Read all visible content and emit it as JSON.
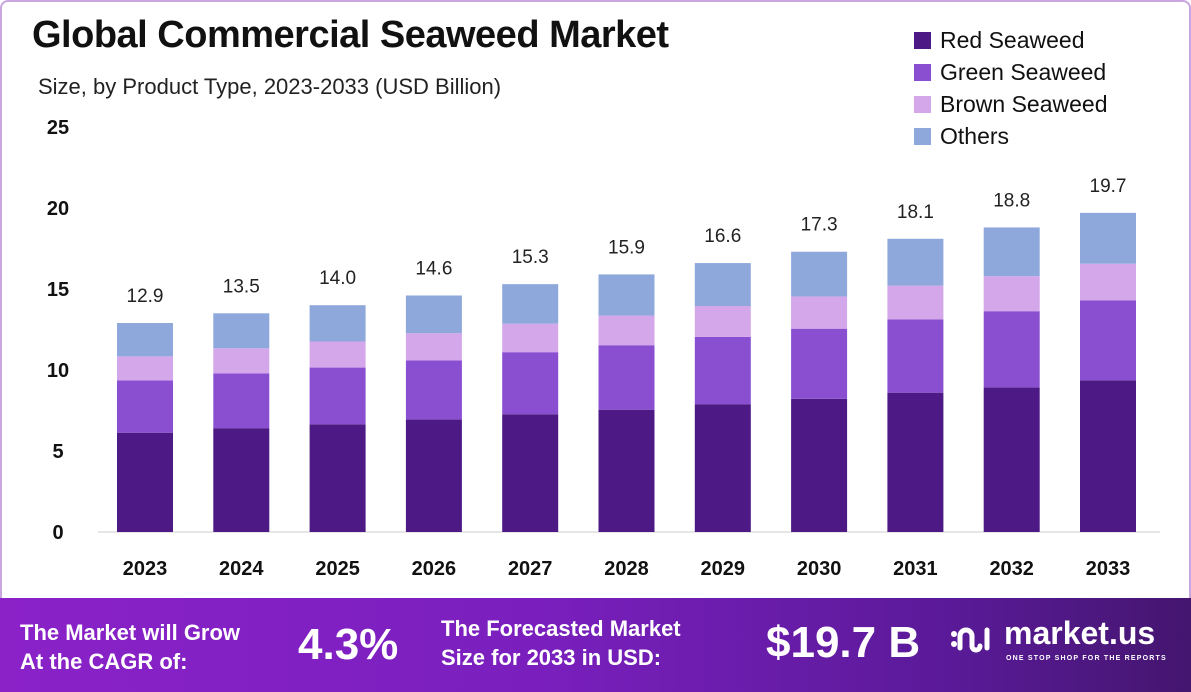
{
  "chart_data": {
    "type": "bar",
    "stacked": true,
    "title": "Global Commercial Seaweed Market",
    "subtitle": "Size, by Product Type, 2023-2033 (USD Billion)",
    "xlabel": "",
    "ylabel": "",
    "ylim": [
      0,
      25
    ],
    "yticks": [
      "0",
      "5",
      "10",
      "15",
      "20",
      "25"
    ],
    "categories": [
      "2023",
      "2024",
      "2025",
      "2026",
      "2027",
      "2028",
      "2029",
      "2030",
      "2031",
      "2032",
      "2033"
    ],
    "totals": [
      "12.9",
      "13.5",
      "14.0",
      "14.6",
      "15.3",
      "15.9",
      "16.6",
      "17.3",
      "18.1",
      "18.8",
      "19.7"
    ],
    "series": [
      {
        "name": "Red Seaweed",
        "color": "#4d1a85",
        "values": [
          6.13,
          6.41,
          6.65,
          6.94,
          7.27,
          7.55,
          7.89,
          8.22,
          8.6,
          8.93,
          9.36
        ]
      },
      {
        "name": "Green Seaweed",
        "color": "#8a4fd0",
        "values": [
          3.23,
          3.38,
          3.5,
          3.65,
          3.83,
          3.98,
          4.15,
          4.33,
          4.53,
          4.7,
          4.93
        ]
      },
      {
        "name": "Brown Seaweed",
        "color": "#d4a6ea",
        "values": [
          1.48,
          1.55,
          1.61,
          1.68,
          1.76,
          1.83,
          1.91,
          1.99,
          2.08,
          2.16,
          2.27
        ]
      },
      {
        "name": "Others",
        "color": "#8fa8dc",
        "values": [
          2.06,
          2.16,
          2.24,
          2.33,
          2.44,
          2.54,
          2.65,
          2.76,
          2.89,
          3.01,
          3.14
        ]
      }
    ],
    "legend_position": "top-right",
    "grid": false
  },
  "footer": {
    "cagr_label_1": "The Market will Grow",
    "cagr_label_2": "At the CAGR of:",
    "cagr_value": "4.3%",
    "forecast_label_1": "The Forecasted Market",
    "forecast_label_2": "Size for 2033 in USD:",
    "forecast_value": "$19.7 B",
    "brand": "market.us",
    "tagline": "ONE STOP SHOP FOR THE REPORTS"
  }
}
